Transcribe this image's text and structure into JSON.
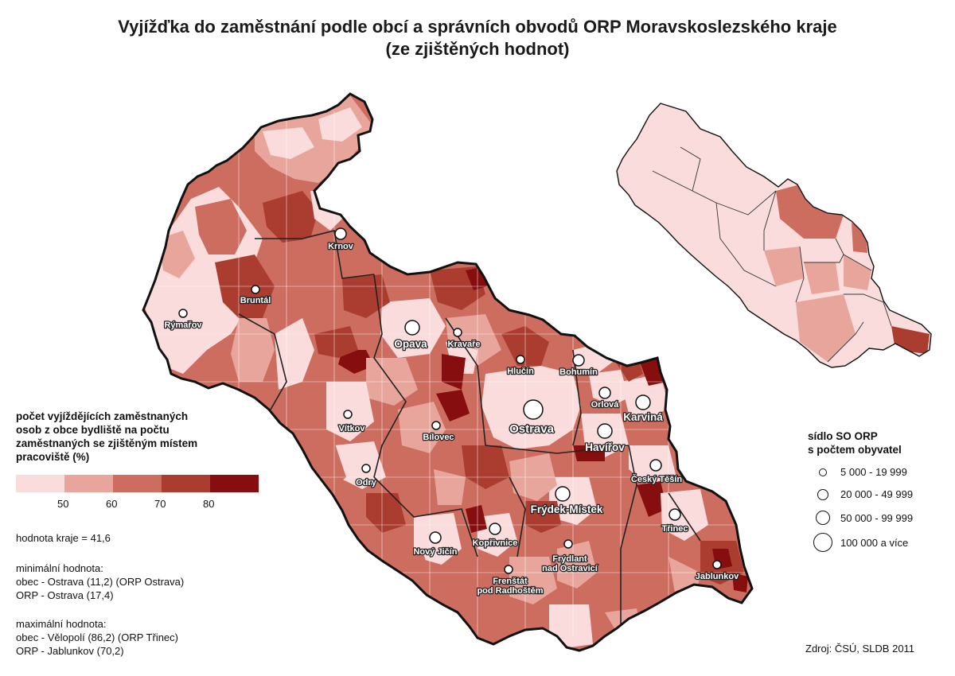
{
  "title": {
    "line1": "Vyjížďka do zaměstnání podle obcí a správních obvodů ORP Moravskoslezského kraje",
    "line2": "(ze zjištěných hodnot)"
  },
  "legend": {
    "title_lines": [
      "počet vyjíždějících zaměstnaných",
      "osob z obce bydliště na počtu",
      "zaměstnaných se zjištěným místem",
      "pracoviště (%)"
    ],
    "classes": [
      {
        "color": "#fadcdc",
        "range": "< 50"
      },
      {
        "color": "#e8a59c",
        "range": "50 - 60"
      },
      {
        "color": "#cd6d5f",
        "range": "60 - 70"
      },
      {
        "color": "#ab3c30",
        "range": "70 - 80"
      },
      {
        "color": "#860e0e",
        "range": "> 80"
      }
    ],
    "ticks": [
      "50",
      "60",
      "70",
      "80"
    ]
  },
  "stats": {
    "region_value": "hodnota kraje = 41,6",
    "min_heading": "minimální hodnota:",
    "min_obec": "obec - Ostrava (11,2) (ORP Ostrava)",
    "min_orp": "ORP - Ostrava (17,4)",
    "max_heading": "maximální hodnota:",
    "max_obec": "obec - Vělopolí (86,2) (ORP Třinec)",
    "max_orp": "ORP - Jablunkov (70,2)"
  },
  "size_legend": {
    "title_lines": [
      "sídlo SO ORP",
      "s počtem obyvatel"
    ],
    "items": [
      {
        "label": "5 000 - 19 999",
        "size_class": 1
      },
      {
        "label": "20 000 - 49 999",
        "size_class": 2
      },
      {
        "label": "50 000 - 99 999",
        "size_class": 3
      },
      {
        "label": "100 000 a více",
        "size_class": 4
      }
    ]
  },
  "cities": [
    {
      "name": "Krnov",
      "size_class": 2
    },
    {
      "name": "Bruntál",
      "size_class": 1
    },
    {
      "name": "Rýmařov",
      "size_class": 1
    },
    {
      "name": "Opava",
      "size_class": 3
    },
    {
      "name": "Kravaře",
      "size_class": 1
    },
    {
      "name": "Hlučín",
      "size_class": 1
    },
    {
      "name": "Bohumín",
      "size_class": 2
    },
    {
      "name": "Orlová",
      "size_class": 2
    },
    {
      "name": "Karviná",
      "size_class": 3
    },
    {
      "name": "Ostrava",
      "size_class": 4
    },
    {
      "name": "Havířov",
      "size_class": 3
    },
    {
      "name": "Vítkov",
      "size_class": 1
    },
    {
      "name": "Bílovec",
      "size_class": 1
    },
    {
      "name": "Odry",
      "size_class": 1
    },
    {
      "name": "Český Těšín",
      "size_class": 2
    },
    {
      "name": "Frýdek-Místek",
      "size_class": 3
    },
    {
      "name": "Třinec",
      "size_class": 2
    },
    {
      "name": "Nový Jičín",
      "size_class": 2
    },
    {
      "name": "Kopřivnice",
      "size_class": 2
    },
    {
      "name": "Frýdlant nad Ostravicí",
      "size_class": 1
    },
    {
      "name": "Frenštát pod Radhoštěm",
      "size_class": 1
    },
    {
      "name": "Jablunkov",
      "size_class": 1
    }
  ],
  "source": "Zdroj: ČSÚ, SLDB 2011"
}
